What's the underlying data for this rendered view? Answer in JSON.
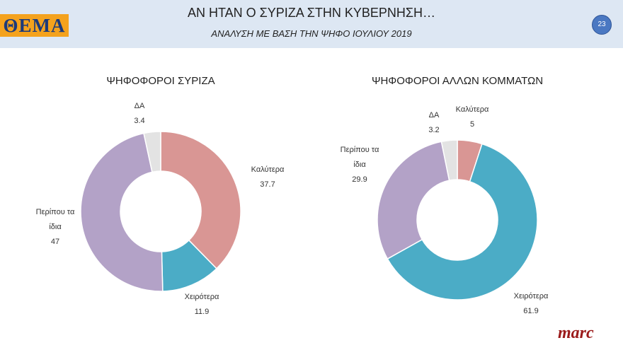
{
  "header": {
    "logo": "ΘΕΜΑ",
    "title": "ΑΝ ΗΤΑΝ Ο ΣΥΡΙΖΑ ΣΤΗΝ ΚΥΒΕΡΝΗΣΗ…",
    "subtitle": "ΑΝΑΛΥΣΗ ΜΕ ΒΑΣΗ ΤΗΝ ΨΗΦΟ ΙΟΥΛΙΟΥ 2019",
    "page": "23"
  },
  "chart_data": [
    {
      "type": "donut",
      "title": "ΨΗΦΟΦΟΡΟΙ ΣΥΡΙΖΑ",
      "categories": [
        "Καλύτερα",
        "Χειρότερα",
        "Περίπου τα ίδια",
        "ΔΑ"
      ],
      "values": [
        37.7,
        11.9,
        47,
        3.4
      ],
      "colors": [
        "#d99694",
        "#4bacc6",
        "#b3a2c7",
        "#e3e3e3"
      ]
    },
    {
      "type": "donut",
      "title": "ΨΗΦΟΦΟΡΟΙ ΑΛΛΩΝ ΚΟΜΜΑΤΩΝ",
      "categories": [
        "Καλύτερα",
        "Χειρότερα",
        "Περίπου τα ίδια",
        "ΔΑ"
      ],
      "values": [
        5,
        61.9,
        29.9,
        3.2
      ],
      "colors": [
        "#d99694",
        "#4bacc6",
        "#b3a2c7",
        "#e3e3e3"
      ]
    }
  ],
  "footer": {
    "brand": "marc"
  }
}
